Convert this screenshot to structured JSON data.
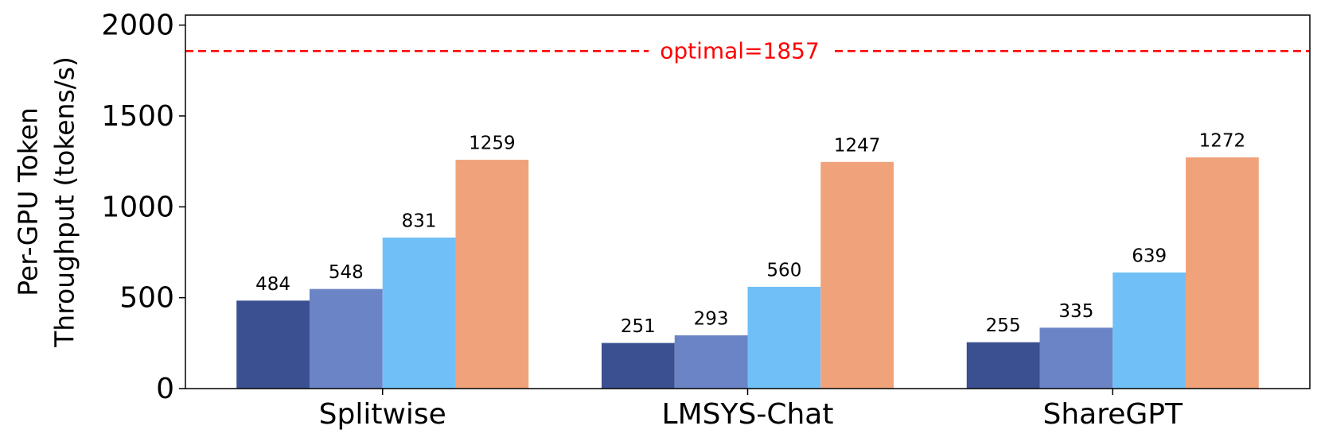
{
  "chart_data": {
    "type": "bar",
    "ylabel": [
      "Per-GPU Token",
      "Throughput (tokens/s)"
    ],
    "categories": [
      "Splitwise",
      "LMSYS-Chat",
      "ShareGPT"
    ],
    "series": [
      {
        "color": "#3a5091",
        "values": [
          484,
          251,
          255
        ]
      },
      {
        "color": "#6b84c5",
        "values": [
          548,
          293,
          335
        ]
      },
      {
        "color": "#70c0f7",
        "values": [
          831,
          560,
          639
        ]
      },
      {
        "color": "#f0a37b",
        "values": [
          1259,
          1247,
          1272
        ]
      }
    ],
    "reference_line": {
      "value": 1857,
      "label": "optimal=1857",
      "color": "#ff0000"
    },
    "ylim": [
      0,
      2055
    ],
    "yticks": [
      0,
      500,
      1000,
      1500,
      2000
    ],
    "grid": false
  }
}
